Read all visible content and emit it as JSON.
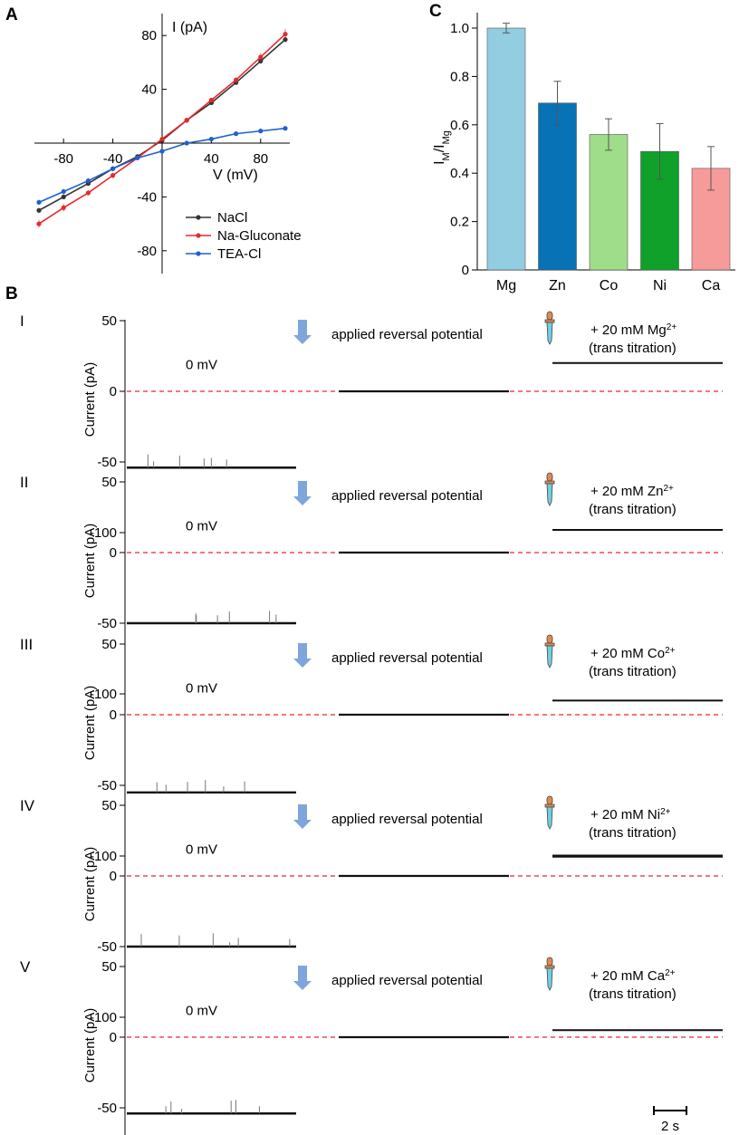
{
  "panels": {
    "A": {
      "letter": "A",
      "chart_data": {
        "type": "line",
        "title": "",
        "xlabel": "V (mV)",
        "ylabel": "I (pA)",
        "xlim": [
          -100,
          100
        ],
        "ylim": [
          -100,
          90
        ],
        "xticks": [
          -80,
          -40,
          40,
          80
        ],
        "yticks": [
          80,
          40,
          -40,
          -80
        ],
        "xtick_labels": [
          "-80",
          "-40",
          "40",
          "80"
        ],
        "ytick_labels": [
          "80",
          "40",
          "-40",
          "-80"
        ],
        "x": [
          -100,
          -80,
          -60,
          -40,
          -20,
          0,
          20,
          40,
          60,
          80,
          100
        ],
        "series": [
          {
            "name": "NaCl",
            "color": "#333333",
            "values": [
              -50,
              -40,
              -30,
              -19,
              -10,
              2,
              17,
              30,
              45,
              61,
              77
            ],
            "err": [
              1,
              1,
              1,
              1,
              1,
              1,
              1,
              1,
              1,
              2,
              2
            ]
          },
          {
            "name": "Na-Gluconate",
            "color": "#e8292b",
            "values": [
              -60,
              -48,
              -37,
              -24,
              -11,
              3,
              17,
              32,
              47,
              64,
              81
            ],
            "err": [
              3,
              3,
              2,
              2,
              1,
              1,
              1,
              1,
              2,
              3,
              4
            ]
          },
          {
            "name": "TEA-Cl",
            "color": "#1f5fd1",
            "values": [
              -44,
              -36,
              -28,
              -19,
              -11,
              -6,
              0,
              3,
              7,
              9,
              11
            ],
            "err": [
              2,
              2,
              2,
              1,
              1,
              1,
              1,
              1,
              1,
              1,
              1
            ]
          }
        ],
        "legend": "bottom-right"
      }
    },
    "C": {
      "letter": "C",
      "chart_data": {
        "type": "bar",
        "title": "",
        "xlabel": "",
        "ylabel": "I_M/I_Mg",
        "ylabel_main": "I",
        "ylabel_sub1": "M",
        "ylabel_slash": "/I",
        "ylabel_sub2": "Mg",
        "categories": [
          "Mg",
          "Zn",
          "Co",
          "Ni",
          "Ca"
        ],
        "values": [
          1.0,
          0.69,
          0.56,
          0.49,
          0.42
        ],
        "errors": [
          0.02,
          0.09,
          0.065,
          0.115,
          0.09
        ],
        "colors": [
          "#92cde2",
          "#0872b7",
          "#a0dd8a",
          "#10a12b",
          "#f79a9a"
        ],
        "ylim": [
          0,
          1.05
        ],
        "yticks": [
          0,
          0.2,
          0.4,
          0.6,
          0.8,
          1.0
        ],
        "ytick_labels": [
          "0",
          "0.2",
          "0.4",
          "0.6",
          "0.8",
          "1.0"
        ]
      }
    },
    "B": {
      "letter": "B",
      "ylabel": "Current (pA)",
      "yticks": [
        50,
        0,
        -50,
        -100
      ],
      "ytick_labels": [
        "50",
        "0",
        "-50",
        "-100"
      ],
      "voltage_label": "0 mV",
      "reversal_label": "applied reversal potential",
      "trans_label": "(trans titration)",
      "scale_bar_label": "2 s",
      "chart_data": {
        "type": "line",
        "ylabel": "Current (pA)",
        "ylim": [
          -100,
          50
        ],
        "segments": [
          "0 mV",
          "applied reversal potential",
          "after + 20 mM ion (trans titration)"
        ],
        "time_scale_s": 2,
        "traces": [
          {
            "id": "I",
            "ion": "Mg",
            "charge": "2+",
            "prefix": "+ 20 mM ",
            "levels_pA": [
              -54,
              0,
              20
            ]
          },
          {
            "id": "II",
            "ion": "Zn",
            "charge": "2+",
            "prefix": "+ 20 mM ",
            "levels_pA": [
              -50,
              0,
              16
            ]
          },
          {
            "id": "III",
            "ion": "Co",
            "charge": "2+",
            "prefix": "+ 20 mM ",
            "levels_pA": [
              -55,
              0,
              10
            ]
          },
          {
            "id": "IV",
            "ion": "Ni",
            "charge": "2+",
            "prefix": "+ 20 mM ",
            "levels_pA": [
              -50,
              0,
              14
            ]
          },
          {
            "id": "V",
            "ion": "Ca",
            "charge": "2+",
            "prefix": "+ 20 mM ",
            "levels_pA": [
              -54,
              0,
              5
            ]
          }
        ]
      }
    }
  },
  "colors": {
    "axis": "#000000",
    "zero_line": "#e8292b",
    "arrow": "#7ea6dc",
    "dropper_bulb": "#e08a53",
    "dropper_tube": "#6fd0e0"
  }
}
